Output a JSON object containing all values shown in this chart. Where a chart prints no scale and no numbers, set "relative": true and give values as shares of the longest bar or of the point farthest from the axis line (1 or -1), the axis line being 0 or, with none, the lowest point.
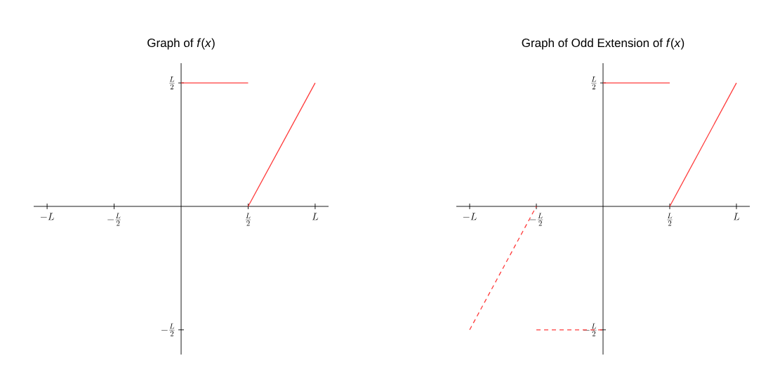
{
  "chart_data": [
    {
      "type": "line",
      "title": "Graph of *f*(*x*)",
      "marker": "none",
      "relative": true,
      "categories": [
        "-L",
        "-\\frac{L}{2}",
        null,
        "\\frac{L}{2}",
        "L"
      ],
      "annotations": [
        "\\frac{L}{2}",
        "-\\frac{L}{2}"
      ],
      "series": [
        {
          "color": "#ff3b3b",
          "line_style": "solid",
          "values": [
            null,
            null,
            1,
            1,
            null
          ]
        },
        {
          "color": "#ff3b3b",
          "line_style": "solid",
          "values": [
            null,
            null,
            null,
            0,
            1
          ]
        }
      ]
    },
    {
      "type": "line",
      "title": "Graph of Odd Extension of *f*(*x*)",
      "marker": "none",
      "relative": true,
      "categories": [
        "-L",
        "-\\frac{L}{2}",
        null,
        "\\frac{L}{2}",
        "L"
      ],
      "annotations": [
        "\\frac{L}{2}",
        "-\\frac{L}{2}"
      ],
      "series": [
        {
          "color": "#ff3b3b",
          "line_style": "solid",
          "values": [
            null,
            null,
            1,
            1,
            null
          ]
        },
        {
          "color": "#ff3b3b",
          "line_style": "solid",
          "values": [
            null,
            null,
            null,
            0,
            1
          ]
        },
        {
          "color": "#ff3b3b",
          "line_style": "dashed",
          "values": [
            -1,
            0,
            null,
            null,
            null
          ]
        },
        {
          "color": "#ff3b3b",
          "line_style": "dashed",
          "values": [
            null,
            -1,
            -1,
            null,
            null
          ]
        }
      ]
    }
  ]
}
